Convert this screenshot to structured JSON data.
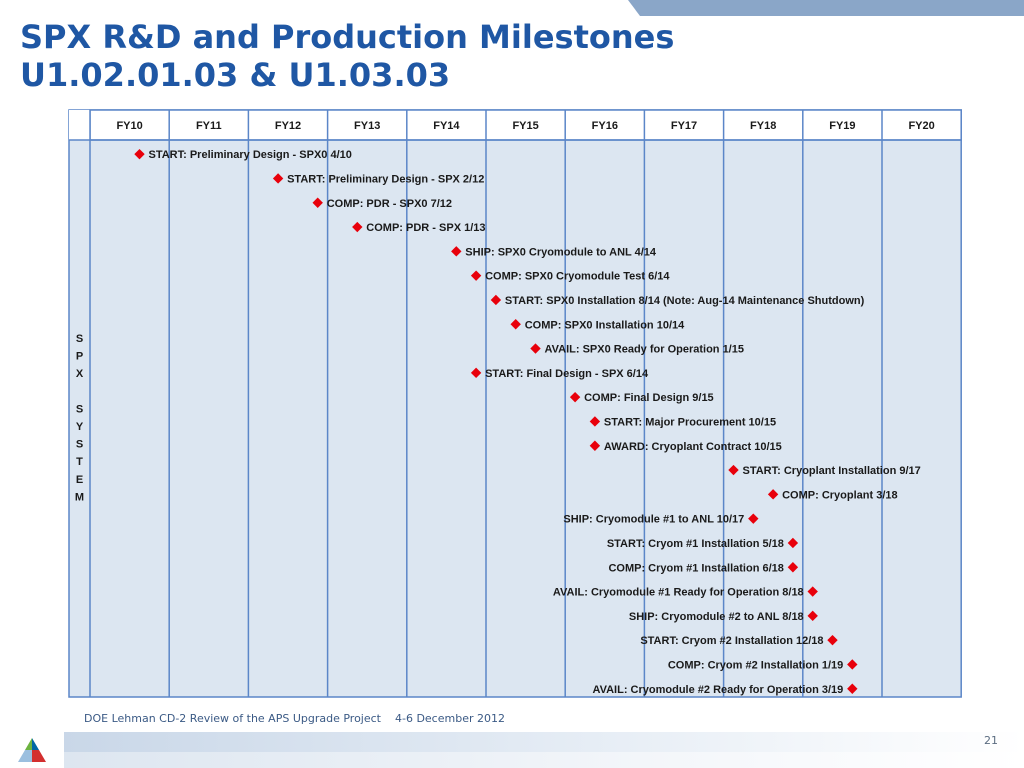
{
  "slide": {
    "title_line1": "SPX R&D and Production Milestones",
    "title_line2": "U1.02.01.03 & U1.03.03",
    "footer_left": "DOE Lehman CD-2 Review of the APS Upgrade Project",
    "footer_date": "4-6 December  2012",
    "page_number": "21"
  },
  "colors": {
    "title": "#1f57a4",
    "grid": "#5b86c8",
    "plot_background": "#dce6f1",
    "marker": "#e8000b",
    "text": "#1a1a1a"
  },
  "chart_data": {
    "type": "gantt-milestones",
    "periods": [
      "FY10",
      "FY11",
      "FY12",
      "FY13",
      "FY14",
      "FY15",
      "FY16",
      "FY17",
      "FY18",
      "FY19",
      "FY20"
    ],
    "row_group_label": "SPX SYSTEM",
    "milestones": [
      {
        "label": "START: Preliminary Design - SPX0 4/10",
        "fiscal_year": 10,
        "quarter": 3,
        "label_side": "right"
      },
      {
        "label": "START: Preliminary Design - SPX 2/12",
        "fiscal_year": 12,
        "quarter": 2,
        "label_side": "right"
      },
      {
        "label": "COMP: PDR - SPX0 7/12",
        "fiscal_year": 12,
        "quarter": 4,
        "label_side": "right"
      },
      {
        "label": "COMP: PDR - SPX 1/13",
        "fiscal_year": 13,
        "quarter": 2,
        "label_side": "right"
      },
      {
        "label": "SHIP: SPX0 Cryomodule to ANL 4/14",
        "fiscal_year": 14,
        "quarter": 3,
        "label_side": "right"
      },
      {
        "label": "COMP: SPX0 Cryomodule Test 6/14",
        "fiscal_year": 14,
        "quarter": 4,
        "label_side": "right"
      },
      {
        "label": "START: SPX0 Installation 8/14 (Note: Aug-14 Maintenance Shutdown)",
        "fiscal_year": 15,
        "quarter": 1,
        "label_side": "right"
      },
      {
        "label": "COMP: SPX0 Installation 10/14",
        "fiscal_year": 15,
        "quarter": 2,
        "label_side": "right"
      },
      {
        "label": "AVAIL: SPX0 Ready for Operation 1/15",
        "fiscal_year": 15,
        "quarter": 3,
        "label_side": "right"
      },
      {
        "label": "START: Final Design - SPX 6/14",
        "fiscal_year": 14,
        "quarter": 4,
        "label_side": "right"
      },
      {
        "label": "COMP: Final Design 9/15",
        "fiscal_year": 16,
        "quarter": 1,
        "label_side": "right"
      },
      {
        "label": "START: Major Procurement 10/15",
        "fiscal_year": 16,
        "quarter": 2,
        "label_side": "right"
      },
      {
        "label": "AWARD: Cryoplant Contract 10/15",
        "fiscal_year": 16,
        "quarter": 2,
        "label_side": "right"
      },
      {
        "label": "START: Cryoplant Installation 9/17",
        "fiscal_year": 18,
        "quarter": 1,
        "label_side": "right"
      },
      {
        "label": "COMP: Cryoplant 3/18",
        "fiscal_year": 18,
        "quarter": 3,
        "label_side": "right"
      },
      {
        "label": "SHIP: Cryomodule #1 to ANL 10/17",
        "fiscal_year": 18,
        "quarter": 2,
        "label_side": "left"
      },
      {
        "label": "START: Cryom #1 Installation 5/18",
        "fiscal_year": 18,
        "quarter": 4,
        "label_side": "left"
      },
      {
        "label": "COMP: Cryom #1 Installation 6/18",
        "fiscal_year": 18,
        "quarter": 4,
        "label_side": "left"
      },
      {
        "label": "AVAIL: Cryomodule #1 Ready for Operation 8/18",
        "fiscal_year": 19,
        "quarter": 1,
        "label_side": "left"
      },
      {
        "label": "SHIP: Cryomodule #2 to ANL 8/18",
        "fiscal_year": 19,
        "quarter": 1,
        "label_side": "left"
      },
      {
        "label": "START: Cryom #2 Installation 12/18",
        "fiscal_year": 19,
        "quarter": 2,
        "label_side": "left"
      },
      {
        "label": "COMP: Cryom #2 Installation 1/19",
        "fiscal_year": 19,
        "quarter": 3,
        "label_side": "left"
      },
      {
        "label": "AVAIL: Cryomodule #2 Ready for Operation 3/19",
        "fiscal_year": 19,
        "quarter": 3,
        "label_side": "left"
      }
    ]
  }
}
